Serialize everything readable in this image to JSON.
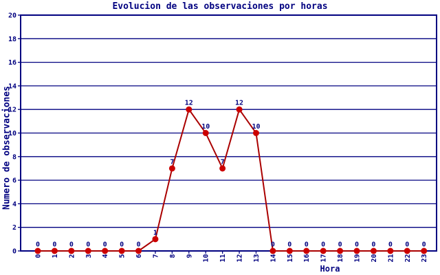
{
  "chart_data": {
    "type": "line",
    "title": "Evolucion de las observaciones por horas",
    "xlabel": "Hora",
    "ylabel": "Numero de observaciones",
    "x": [
      0,
      1,
      2,
      3,
      4,
      5,
      6,
      7,
      8,
      9,
      10,
      11,
      12,
      13,
      14,
      15,
      16,
      17,
      18,
      19,
      20,
      21,
      22,
      23
    ],
    "series": [
      {
        "name": "observaciones",
        "values": [
          0,
          0,
          0,
          0,
          0,
          0,
          0,
          1,
          7,
          12,
          10,
          7,
          12,
          10,
          0,
          0,
          0,
          0,
          0,
          0,
          0,
          0,
          0,
          0
        ]
      }
    ],
    "ylim": [
      0,
      20
    ],
    "ytick_step": 2,
    "grid": true,
    "legend": "none",
    "point_labels_shown": true,
    "colors": {
      "axis": "#000080",
      "grid": "#000080",
      "text": "#000080",
      "line": "#aa0000",
      "point": "#cc0000",
      "background": "#ffffff"
    }
  }
}
